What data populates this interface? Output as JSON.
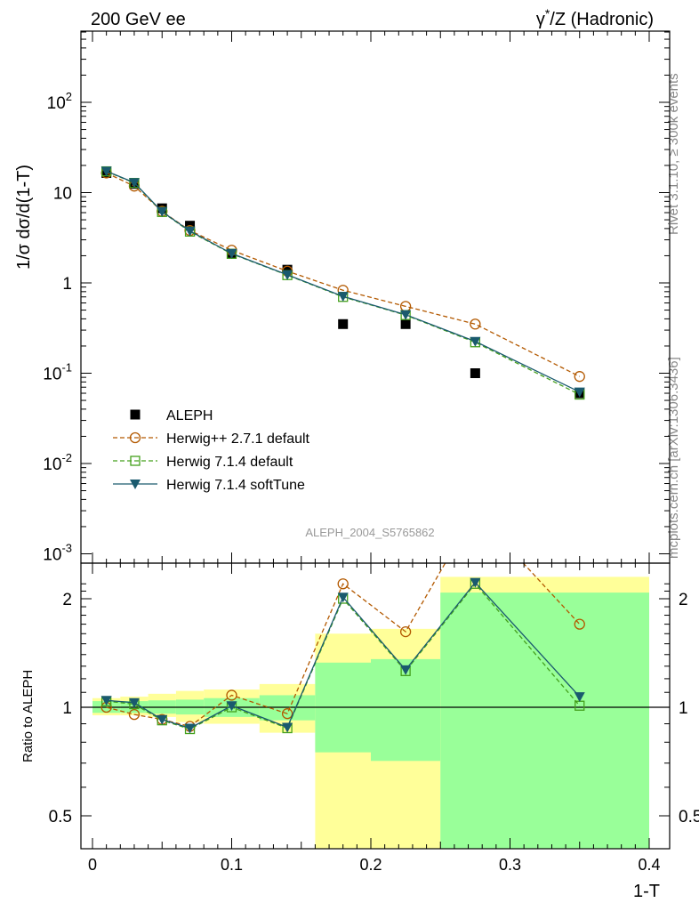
{
  "header": {
    "left_title": "200 GeV ee",
    "right_title_prefix": "γ",
    "right_title_sup": "*",
    "right_title_suffix": "/Z (Hadronic)"
  },
  "side_labels": {
    "rivet": "Rivet 3.1.10, ≥ 300k events",
    "mcplots": "mcplots.cern.ch [arXiv:1306.3436]"
  },
  "analysis_id": "ALEPH_2004_S5765862",
  "colors": {
    "data": "#000000",
    "herwigpp": "#b35900",
    "herwig714_default": "#44a01c",
    "herwig714_softtune": "#1a5a6e",
    "band_inner": "#99ff99",
    "band_outer": "#ffff99"
  },
  "chart_data": [
    {
      "type": "scatter",
      "panel": "main",
      "ylabel": "1/σ  dσ/d(1-T)",
      "xlim": [
        0,
        0.4
      ],
      "ylim": [
        0.001,
        600
      ],
      "y_scale": "log",
      "y_ticks": [
        {
          "value": 0.001,
          "base": "10",
          "exp": "-3"
        },
        {
          "value": 0.01,
          "base": "10",
          "exp": "-2"
        },
        {
          "value": 0.1,
          "base": "10",
          "exp": "-1"
        },
        {
          "value": 1,
          "base": "1",
          "exp": ""
        },
        {
          "value": 10,
          "base": "10",
          "exp": ""
        },
        {
          "value": 100,
          "base": "10",
          "exp": "2"
        }
      ],
      "legend_position": "lower-left",
      "series": [
        {
          "name": "ALEPH",
          "marker": "square",
          "line": "none",
          "x": [
            0.01,
            0.03,
            0.05,
            0.07,
            0.1,
            0.14,
            0.18,
            0.225,
            0.275,
            0.35
          ],
          "y": [
            16.5,
            12.5,
            6.7,
            4.3,
            2.1,
            1.4,
            0.35,
            0.35,
            0.1,
            0.06
          ]
        },
        {
          "name": "Herwig++ 2.7.1 default",
          "marker": "circle",
          "line": "dashed",
          "x": [
            0.01,
            0.03,
            0.05,
            0.07,
            0.1,
            0.14,
            0.18,
            0.225,
            0.275,
            0.35
          ],
          "y": [
            16.5,
            11.8,
            6.2,
            3.8,
            2.3,
            1.35,
            0.83,
            0.55,
            0.35,
            0.092
          ]
        },
        {
          "name": "Herwig 7.1.4 default",
          "marker": "open-square",
          "line": "dashed",
          "x": [
            0.01,
            0.03,
            0.05,
            0.07,
            0.1,
            0.14,
            0.18,
            0.225,
            0.275,
            0.35
          ],
          "y": [
            17.2,
            12.8,
            6.1,
            3.7,
            2.1,
            1.22,
            0.7,
            0.44,
            0.22,
            0.058
          ]
        },
        {
          "name": "Herwig 7.1.4 softTune",
          "marker": "triangle-down",
          "line": "solid",
          "x": [
            0.01,
            0.03,
            0.05,
            0.07,
            0.1,
            0.14,
            0.18,
            0.225,
            0.275,
            0.35
          ],
          "y": [
            17.3,
            12.9,
            6.15,
            3.75,
            2.12,
            1.23,
            0.71,
            0.445,
            0.225,
            0.062
          ]
        }
      ]
    },
    {
      "type": "line",
      "panel": "ratio",
      "ylabel": "Ratio to ALEPH",
      "xlabel": "1-T",
      "xlim": [
        0,
        0.4
      ],
      "ylim": [
        0.4,
        2.25
      ],
      "y_scale": "log",
      "x_ticks": [
        {
          "value": 0,
          "label": "0"
        },
        {
          "value": 0.1,
          "label": "0.1"
        },
        {
          "value": 0.2,
          "label": "0.2"
        },
        {
          "value": 0.3,
          "label": "0.3"
        },
        {
          "value": 0.4,
          "label": "0.4"
        }
      ],
      "y_ticks": [
        {
          "value": 0.5,
          "label": "0.5"
        },
        {
          "value": 1,
          "label": "1"
        },
        {
          "value": 2,
          "label": "2"
        }
      ],
      "bands": [
        {
          "x0": 0.0,
          "x1": 0.02,
          "inner": [
            0.965,
            1.04
          ],
          "outer": [
            0.95,
            1.06
          ]
        },
        {
          "x0": 0.02,
          "x1": 0.04,
          "inner": [
            0.965,
            1.04
          ],
          "outer": [
            0.95,
            1.07
          ]
        },
        {
          "x0": 0.04,
          "x1": 0.06,
          "inner": [
            0.96,
            1.045
          ],
          "outer": [
            0.94,
            1.09
          ]
        },
        {
          "x0": 0.06,
          "x1": 0.08,
          "inner": [
            0.955,
            1.05
          ],
          "outer": [
            0.91,
            1.11
          ]
        },
        {
          "x0": 0.08,
          "x1": 0.12,
          "inner": [
            0.94,
            1.06
          ],
          "outer": [
            0.9,
            1.12
          ]
        },
        {
          "x0": 0.12,
          "x1": 0.16,
          "inner": [
            0.92,
            1.08
          ],
          "outer": [
            0.85,
            1.16
          ]
        },
        {
          "x0": 0.16,
          "x1": 0.2,
          "inner": [
            0.75,
            1.33
          ],
          "outer": [
            0.37,
            1.6
          ]
        },
        {
          "x0": 0.2,
          "x1": 0.25,
          "inner": [
            0.71,
            1.36
          ],
          "outer": [
            0.35,
            1.65
          ]
        },
        {
          "x0": 0.25,
          "x1": 0.4,
          "inner": [
            0.35,
            2.08
          ],
          "outer": [
            0.35,
            2.3
          ]
        }
      ],
      "series": [
        {
          "name": "Herwig++ 2.7.1 default",
          "marker": "circle",
          "line": "dashed",
          "x": [
            0.01,
            0.03,
            0.05,
            0.07,
            0.1,
            0.14,
            0.18,
            0.225,
            0.275,
            0.35
          ],
          "y": [
            1.0,
            0.955,
            0.925,
            0.885,
            1.08,
            0.96,
            2.2,
            1.62,
            3.5,
            1.7
          ]
        },
        {
          "name": "Herwig 7.1.4 default",
          "marker": "open-square",
          "line": "dashed",
          "x": [
            0.01,
            0.03,
            0.05,
            0.07,
            0.1,
            0.14,
            0.18,
            0.225,
            0.275,
            0.35
          ],
          "y": [
            1.04,
            1.02,
            0.92,
            0.87,
            1.0,
            0.875,
            2.0,
            1.26,
            2.2,
            1.01
          ]
        },
        {
          "name": "Herwig 7.1.4 softTune",
          "marker": "triangle-down",
          "line": "solid",
          "x": [
            0.01,
            0.03,
            0.05,
            0.07,
            0.1,
            0.14,
            0.18,
            0.225,
            0.275,
            0.35
          ],
          "y": [
            1.045,
            1.03,
            0.925,
            0.875,
            1.01,
            0.88,
            2.02,
            1.27,
            2.22,
            1.07
          ]
        }
      ]
    }
  ]
}
